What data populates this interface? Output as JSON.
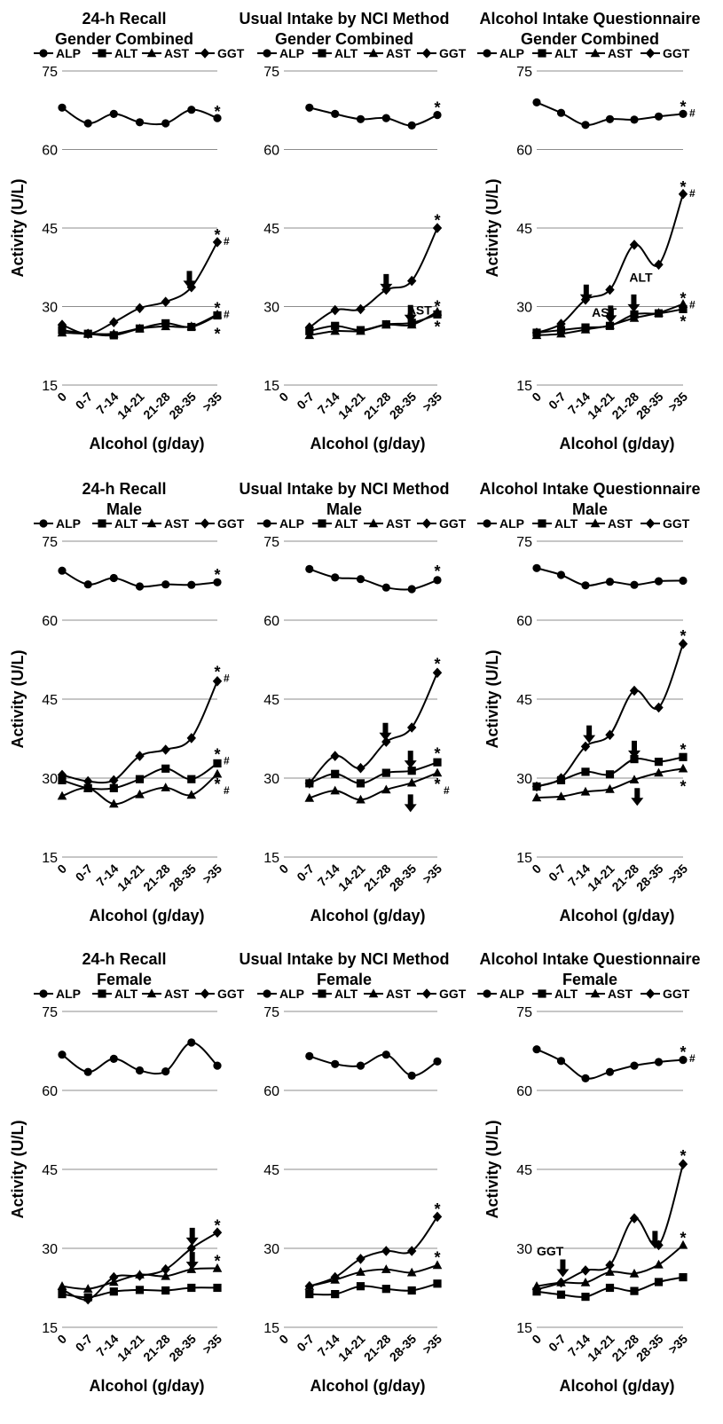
{
  "legend": [
    "ALP",
    "ALT",
    "AST",
    "GGT"
  ],
  "chart_data": [
    {
      "type": "line",
      "title": "24-h Recall",
      "subtitle": "Gender Combined",
      "xlabel": "Alcohol (g/day)",
      "ylabel": "Activity (U/L)",
      "ylim": [
        15,
        75
      ],
      "yticks": [
        15,
        30,
        45,
        60,
        75
      ],
      "grid": true,
      "legend_position": "top",
      "categories": [
        "0",
        "0-7",
        "7-14",
        "14-21",
        "21-28",
        "28-35",
        ">35"
      ],
      "series": [
        {
          "name": "ALP",
          "marker": "circle",
          "values": [
            68,
            65,
            66.8,
            65.2,
            65,
            67.6,
            66
          ]
        },
        {
          "name": "ALT",
          "marker": "square",
          "values": [
            25.5,
            24.8,
            24.5,
            25.8,
            26.8,
            26.1,
            28.3
          ]
        },
        {
          "name": "AST",
          "marker": "triangle",
          "values": [
            25,
            24.8,
            24.8,
            25.8,
            26.2,
            26.2,
            28.5
          ]
        },
        {
          "name": "GGT",
          "marker": "diamond",
          "values": [
            26.5,
            24.8,
            27,
            29.7,
            30.9,
            33.7,
            42.3
          ]
        }
      ],
      "annotations": [
        {
          "kind": "sym",
          "x": 6,
          "y": 67.4,
          "text": "*"
        },
        {
          "kind": "sym",
          "x": 6,
          "y": 43.8,
          "text": "*",
          "sub": "#"
        },
        {
          "kind": "sym",
          "x": 6,
          "y": 29.8,
          "text": "*",
          "sub": "#"
        },
        {
          "kind": "sym",
          "x": 6,
          "y": 24.9,
          "text": "*"
        },
        {
          "kind": "arrow",
          "x": 4.92,
          "y": 36.8
        }
      ]
    },
    {
      "type": "line",
      "title": "Usual Intake by NCI Method",
      "subtitle": "Gender Combined",
      "xlabel": "Alcohol (g/day)",
      "ylabel": "",
      "ylim": [
        15,
        75
      ],
      "yticks": [
        15,
        30,
        45,
        60,
        75
      ],
      "grid": true,
      "legend_position": "top",
      "categories": [
        "0",
        "0-7",
        "7-14",
        "14-21",
        "21-28",
        "28-35",
        ">35"
      ],
      "series": [
        {
          "name": "ALP",
          "values": [
            null,
            68,
            66.8,
            65.8,
            66,
            64.6,
            66.6
          ]
        },
        {
          "name": "ALT",
          "values": [
            null,
            25.3,
            26.3,
            25.5,
            26.6,
            26.9,
            28.5
          ]
        },
        {
          "name": "AST",
          "values": [
            null,
            24.5,
            25.3,
            25.3,
            26.5,
            26.5,
            29
          ]
        },
        {
          "name": "GGT",
          "values": [
            null,
            26,
            29.3,
            29.5,
            33.2,
            34.9,
            45
          ]
        }
      ],
      "annotations": [
        {
          "kind": "sym",
          "x": 6,
          "y": 68.1,
          "text": "*"
        },
        {
          "kind": "sym",
          "x": 6,
          "y": 46.6,
          "text": "*"
        },
        {
          "kind": "sym",
          "x": 6,
          "y": 30.2,
          "text": "*"
        },
        {
          "kind": "sym",
          "x": 6,
          "y": 26.3,
          "text": "*"
        },
        {
          "kind": "arrow",
          "x": 4,
          "y": 36.2
        },
        {
          "kind": "arrow",
          "x": 4.95,
          "y": 30.3
        },
        {
          "kind": "label",
          "x": 5.3,
          "y": 29.3,
          "text": "AST"
        }
      ]
    },
    {
      "type": "line",
      "title": "Alcohol Intake Questionnaire",
      "subtitle": "Gender Combined",
      "xlabel": "Alcohol (g/day)",
      "ylabel": "Activity (U/L)",
      "ylim": [
        15,
        75
      ],
      "yticks": [
        15,
        30,
        45,
        60,
        75
      ],
      "grid": true,
      "legend_position": "top",
      "categories": [
        "0",
        "0-7",
        "7-14",
        "14-21",
        "21-28",
        "28-35",
        ">35"
      ],
      "series": [
        {
          "name": "ALP",
          "values": [
            69,
            67,
            64.7,
            65.8,
            65.7,
            66.3,
            66.8
          ]
        },
        {
          "name": "ALT",
          "values": [
            25,
            25.5,
            26,
            26.3,
            28.5,
            28.7,
            29.5
          ]
        },
        {
          "name": "AST",
          "values": [
            24.5,
            24.8,
            25.6,
            26.4,
            27.8,
            28.8,
            30.5
          ]
        },
        {
          "name": "GGT",
          "values": [
            25,
            26.7,
            31.3,
            33.2,
            41.8,
            38,
            51.5
          ]
        }
      ],
      "annotations": [
        {
          "kind": "sym",
          "x": 6,
          "y": 68.3,
          "text": "*",
          "sub": "#"
        },
        {
          "kind": "sym",
          "x": 6,
          "y": 53,
          "text": "*",
          "sub": "#"
        },
        {
          "kind": "sym",
          "x": 6,
          "y": 31.7,
          "text": "*",
          "sub": "#"
        },
        {
          "kind": "sym",
          "x": 6,
          "y": 27.3,
          "text": "*"
        },
        {
          "kind": "arrow",
          "x": 2.03,
          "y": 34.2
        },
        {
          "kind": "arrow",
          "x": 3.03,
          "y": 30.2
        },
        {
          "kind": "arrow",
          "x": 3.98,
          "y": 32.3
        },
        {
          "kind": "label",
          "x": 2.77,
          "y": 28.9,
          "text": "AST"
        },
        {
          "kind": "label",
          "x": 4.27,
          "y": 35.6,
          "text": "ALT"
        }
      ]
    },
    {
      "type": "line",
      "title": "24-h Recall",
      "subtitle": "Male",
      "xlabel": "Alcohol (g/day)",
      "ylabel": "Activity (U/L)",
      "ylim": [
        15,
        75
      ],
      "yticks": [
        15,
        30,
        45,
        60,
        75
      ],
      "grid": true,
      "legend_position": "top",
      "categories": [
        "0",
        "0-7",
        "7-14",
        "14-21",
        "21-28",
        "28-35",
        ">35"
      ],
      "series": [
        {
          "name": "ALP",
          "values": [
            69.4,
            66.8,
            68,
            66.4,
            66.8,
            66.7,
            67.2
          ]
        },
        {
          "name": "ALT",
          "values": [
            29.6,
            28.1,
            28.1,
            29.8,
            31.8,
            29.8,
            32.8
          ]
        },
        {
          "name": "AST",
          "values": [
            26.6,
            28.1,
            25.1,
            26.9,
            28.2,
            26.8,
            30.8
          ]
        },
        {
          "name": "GGT",
          "values": [
            30.6,
            29.4,
            29.6,
            34.2,
            35.4,
            37.6,
            48.4
          ]
        }
      ],
      "annotations": [
        {
          "kind": "sym",
          "x": 6,
          "y": 68.8,
          "text": "*"
        },
        {
          "kind": "sym",
          "x": 6,
          "y": 50.3,
          "text": "*",
          "sub": "#"
        },
        {
          "kind": "sym",
          "x": 6,
          "y": 34.6,
          "text": "*",
          "sub": "#"
        },
        {
          "kind": "sym",
          "x": 6,
          "y": 29,
          "text": "*",
          "sub": "#"
        }
      ]
    },
    {
      "type": "line",
      "title": "Usual Intake by NCI Method",
      "subtitle": "Male",
      "xlabel": "Alcohol (g/day)",
      "ylabel": "",
      "ylim": [
        15,
        75
      ],
      "yticks": [
        15,
        30,
        45,
        60,
        75
      ],
      "grid": true,
      "legend_position": "top",
      "categories": [
        "0",
        "0-7",
        "7-14",
        "14-21",
        "21-28",
        "28-35",
        ">35"
      ],
      "series": [
        {
          "name": "ALP",
          "values": [
            null,
            69.7,
            68.1,
            67.8,
            66.2,
            65.9,
            67.6
          ]
        },
        {
          "name": "ALT",
          "values": [
            null,
            29,
            30.8,
            29,
            31,
            31.4,
            33
          ]
        },
        {
          "name": "AST",
          "values": [
            null,
            26.2,
            27.6,
            25.9,
            27.8,
            29.1,
            31
          ]
        },
        {
          "name": "GGT",
          "values": [
            null,
            29,
            34.2,
            31.9,
            36.9,
            39.6,
            50
          ]
        }
      ],
      "annotations": [
        {
          "kind": "sym",
          "x": 6,
          "y": 69.4,
          "text": "*"
        },
        {
          "kind": "sym",
          "x": 6,
          "y": 51.8,
          "text": "*"
        },
        {
          "kind": "sym",
          "x": 6,
          "y": 34.8,
          "text": "*"
        },
        {
          "kind": "sym",
          "x": 6,
          "y": 29,
          "text": "*",
          "sub": "#"
        },
        {
          "kind": "arrow",
          "x": 3.97,
          "y": 40.5
        },
        {
          "kind": "arrow",
          "x": 4.95,
          "y": 35.2
        },
        {
          "kind": "arrow",
          "x": 4.95,
          "y": 26.9
        }
      ]
    },
    {
      "type": "line",
      "title": "Alcohol Intake Questionnaire",
      "subtitle": "Male",
      "xlabel": "Alcohol (g/day)",
      "ylabel": "Activity (U/L)",
      "ylim": [
        15,
        75
      ],
      "yticks": [
        15,
        30,
        45,
        60,
        75
      ],
      "grid": true,
      "legend_position": "top",
      "categories": [
        "0",
        "0-7",
        "7-14",
        "14-21",
        "21-28",
        "28-35",
        ">35"
      ],
      "series": [
        {
          "name": "ALP",
          "values": [
            69.9,
            68.6,
            66.6,
            67.3,
            66.7,
            67.4,
            67.5
          ]
        },
        {
          "name": "ALT",
          "values": [
            28.4,
            29.6,
            31.2,
            30.7,
            33.6,
            33.1,
            34
          ]
        },
        {
          "name": "AST",
          "values": [
            26.3,
            26.5,
            27.4,
            27.9,
            29.7,
            31,
            31.8
          ]
        },
        {
          "name": "GGT",
          "values": [
            28.4,
            30,
            36,
            38.2,
            46.6,
            43.4,
            55.5
          ]
        }
      ],
      "annotations": [
        {
          "kind": "sym",
          "x": 6,
          "y": 57.1,
          "text": "*"
        },
        {
          "kind": "sym",
          "x": 6,
          "y": 35.6,
          "text": "*"
        },
        {
          "kind": "sym",
          "x": 6,
          "y": 28.6,
          "text": "*"
        },
        {
          "kind": "arrow",
          "x": 2.15,
          "y": 40
        },
        {
          "kind": "arrow",
          "x": 4,
          "y": 37.1
        },
        {
          "kind": "arrow",
          "x": 4.12,
          "y": 28.1
        }
      ]
    },
    {
      "type": "line",
      "title": "24-h Recall",
      "subtitle": "Female",
      "xlabel": "Alcohol (g/day)",
      "ylabel": "Activity (U/L)",
      "ylim": [
        15,
        75
      ],
      "yticks": [
        15,
        30,
        45,
        60,
        75
      ],
      "grid": true,
      "legend_position": "top",
      "categories": [
        "0",
        "0-7",
        "7-14",
        "14-21",
        "21-28",
        "28-35",
        ">35"
      ],
      "series": [
        {
          "name": "ALP",
          "values": [
            66.8,
            63.5,
            66,
            63.8,
            63.6,
            69.1,
            64.7
          ]
        },
        {
          "name": "ALT",
          "values": [
            21.3,
            20.7,
            21.8,
            22.1,
            22,
            22.5,
            22.5
          ]
        },
        {
          "name": "AST",
          "values": [
            22.8,
            22.3,
            23.6,
            25,
            24.7,
            26,
            26.2
          ]
        },
        {
          "name": "GGT",
          "values": [
            22.2,
            20.3,
            24.5,
            24.8,
            26,
            30,
            33
          ]
        }
      ],
      "annotations": [
        {
          "kind": "sym",
          "x": 6,
          "y": 34.5,
          "text": "*"
        },
        {
          "kind": "sym",
          "x": 6,
          "y": 27.7,
          "text": "*"
        },
        {
          "kind": "arrow",
          "x": 5.03,
          "y": 33.9
        },
        {
          "kind": "arrow",
          "x": 5.03,
          "y": 29.3
        }
      ]
    },
    {
      "type": "line",
      "title": "Usual Intake by NCI Method",
      "subtitle": "Female",
      "xlabel": "Alcohol (g/day)",
      "ylabel": "",
      "ylim": [
        15,
        75
      ],
      "yticks": [
        15,
        30,
        45,
        60,
        75
      ],
      "grid": true,
      "legend_position": "top",
      "categories": [
        "0",
        "0-7",
        "7-14",
        "14-21",
        "21-28",
        "28-35",
        ">35"
      ],
      "series": [
        {
          "name": "ALP",
          "values": [
            null,
            66.5,
            65,
            64.7,
            66.8,
            62.8,
            65.5
          ]
        },
        {
          "name": "ALT",
          "values": [
            null,
            21.3,
            21.3,
            22.8,
            22.3,
            22,
            23.3
          ]
        },
        {
          "name": "AST",
          "values": [
            null,
            22.8,
            24,
            25.5,
            26,
            25.4,
            26.8
          ]
        },
        {
          "name": "GGT",
          "values": [
            null,
            22.8,
            24.5,
            28,
            29.5,
            29.5,
            36
          ]
        }
      ],
      "annotations": [
        {
          "kind": "sym",
          "x": 6,
          "y": 37.6,
          "text": "*"
        },
        {
          "kind": "sym",
          "x": 6,
          "y": 28.4,
          "text": "*"
        }
      ]
    },
    {
      "type": "line",
      "title": "Alcohol Intake Questionnaire",
      "subtitle": "Female",
      "xlabel": "Alcohol (g/day)",
      "ylabel": "Activity (U/L)",
      "ylim": [
        15,
        75
      ],
      "yticks": [
        15,
        30,
        45,
        60,
        75
      ],
      "grid": true,
      "legend_position": "top",
      "categories": [
        "0",
        "0-7",
        "7-14",
        "14-21",
        "21-28",
        "28-35",
        ">35"
      ],
      "series": [
        {
          "name": "ALP",
          "values": [
            67.8,
            65.6,
            62.3,
            63.5,
            64.7,
            65.4,
            65.8
          ]
        },
        {
          "name": "ALT",
          "values": [
            21.8,
            21.2,
            20.8,
            22.5,
            21.9,
            23.6,
            24.5
          ]
        },
        {
          "name": "AST",
          "values": [
            22.8,
            23.5,
            23.5,
            25.5,
            25.2,
            26.9,
            30.6
          ]
        },
        {
          "name": "GGT",
          "values": [
            22.2,
            23.5,
            25.8,
            26.8,
            35.7,
            30.6,
            46
          ]
        }
      ],
      "annotations": [
        {
          "kind": "sym",
          "x": 6,
          "y": 67.4,
          "text": "*",
          "sub": "#"
        },
        {
          "kind": "sym",
          "x": 6,
          "y": 47.7,
          "text": "*"
        },
        {
          "kind": "sym",
          "x": 6,
          "y": 32.1,
          "text": "*"
        },
        {
          "kind": "arrow",
          "x": 1.07,
          "y": 27.9
        },
        {
          "kind": "arrow",
          "x": 4.85,
          "y": 33.3
        },
        {
          "kind": "label",
          "x": 0.55,
          "y": 29.5,
          "text": "GGT"
        }
      ]
    }
  ]
}
